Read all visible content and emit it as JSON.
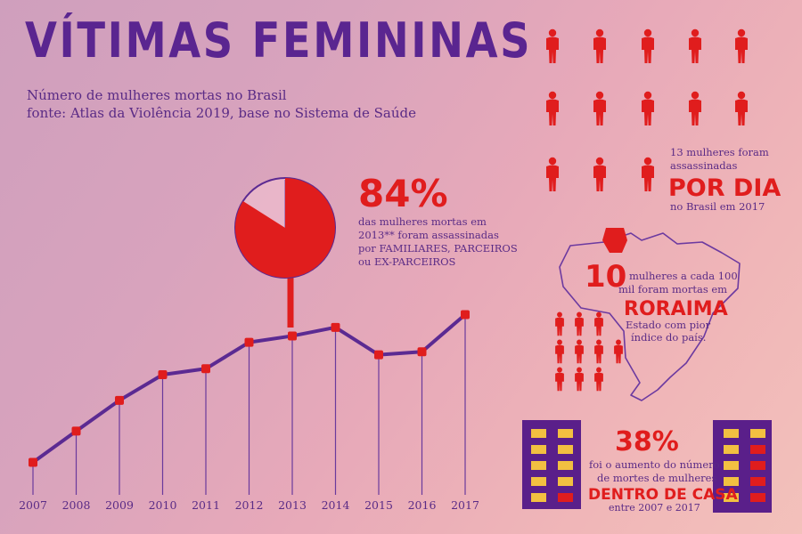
{
  "title": "VÍTIMAS FEMININAS",
  "subtitle": "Número de mulheres mortas no Brasil",
  "source": "fonte: Atlas da Violência 2019, base no Sistema de Saúde",
  "colors": {
    "red": "#e01d1d",
    "purple": "#5a2590",
    "yellow": "#f2c041"
  },
  "chart_data": {
    "type": "line",
    "x": [
      "2007",
      "2008",
      "2009",
      "2010",
      "2011",
      "2012",
      "2013",
      "2014",
      "2015",
      "2016",
      "2017"
    ],
    "series": [
      {
        "values": [
          3778,
          4023,
          4264,
          4465,
          4512,
          4719,
          4769,
          4836,
          4621,
          4645,
          4936
        ]
      }
    ],
    "ylim": [
      3600,
      5100
    ],
    "grid": false
  },
  "pie": {
    "value": 84,
    "label": "84%",
    "text": [
      "das mulheres mortas em",
      "2013** foram assassinadas",
      "por FAMILIARES, PARCEIROS",
      "ou EX-PARCEIROS"
    ]
  },
  "daily": {
    "count": 13,
    "line1": "13 mulheres foram",
    "line2": "assassinadas",
    "emphasis": "POR DIA",
    "line3": "no Brasil em 2017"
  },
  "roraima": {
    "number": "10",
    "line1": "mulheres  a cada 100",
    "line2": "mil foram mortas em",
    "emphasis": "RORAIMA",
    "line3": "Estado com pior",
    "line4": "índice do país.",
    "figures": 10
  },
  "home": {
    "percent": "38%",
    "line1": "foi o aumento do número",
    "line2": "de mortes de mulheres",
    "emphasis": "DENTRO DE CASA",
    "line3": "entre 2007 e 2017"
  }
}
